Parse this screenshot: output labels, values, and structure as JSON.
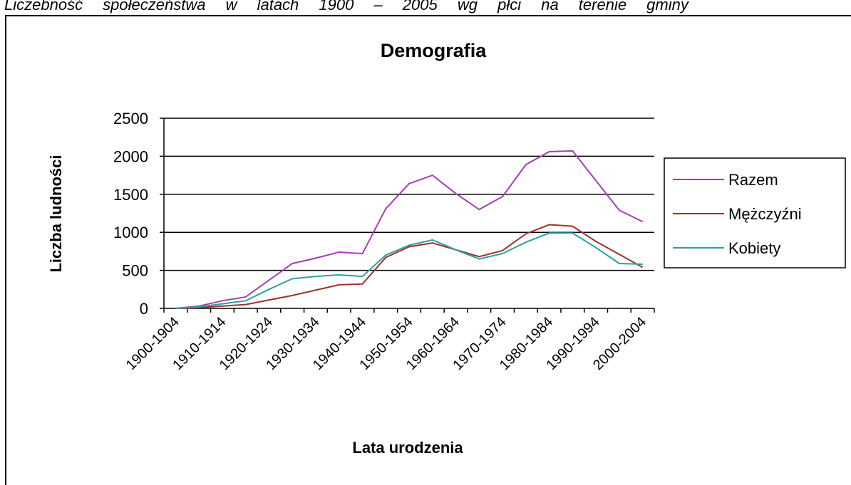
{
  "caption": "Liczebność społeczeństwa w latach 1900 – 2005 wg płci na terenie gminy",
  "chart_data": {
    "type": "line",
    "title": "Demografia",
    "x_label": "Lata urodzenia",
    "y_label": "Liczba ludności",
    "categories": [
      "1900-1904",
      null,
      "1910-1914",
      null,
      "1920-1924",
      null,
      "1930-1934",
      null,
      "1940-1944",
      null,
      "1950-1954",
      null,
      "1960-1964",
      null,
      "1970-1974",
      null,
      "1980-1984",
      null,
      "1990-1994",
      null,
      "2000-2004"
    ],
    "series": [
      {
        "name": "Razem",
        "color": "#a040b0",
        "values": [
          0,
          30,
          100,
          150,
          370,
          590,
          660,
          740,
          720,
          1310,
          1640,
          1750,
          1510,
          1300,
          1470,
          1890,
          2060,
          2070,
          1680,
          1290,
          1140
        ]
      },
      {
        "name": "Mężczyźni",
        "color": "#a0302a",
        "values": [
          0,
          10,
          30,
          50,
          110,
          170,
          240,
          310,
          320,
          670,
          810,
          860,
          770,
          680,
          760,
          980,
          1100,
          1080,
          880,
          710,
          540
        ]
      },
      {
        "name": "Kobiety",
        "color": "#2aa0a0",
        "values": [
          0,
          20,
          60,
          100,
          250,
          390,
          420,
          440,
          420,
          700,
          830,
          900,
          770,
          650,
          720,
          870,
          990,
          990,
          800,
          590,
          580
        ]
      }
    ],
    "ylim": [
      0,
      2500
    ],
    "yticks": [
      0,
      500,
      1000,
      1500,
      2000,
      2500
    ],
    "grid": true,
    "legend": "right"
  }
}
